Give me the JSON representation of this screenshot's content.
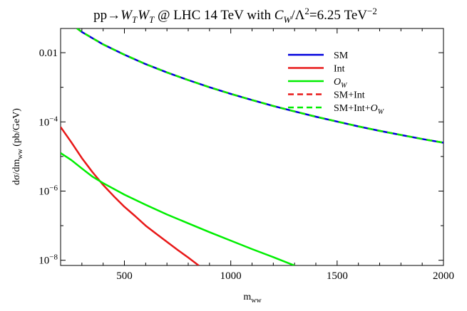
{
  "chart_data": {
    "type": "line",
    "title": {
      "prefix": "pp→",
      "w1": "W",
      "w1_sub": "T",
      "w2": "W",
      "w2_sub": "T",
      "mid": " @ LHC 14 TeV with ",
      "cw": "C",
      "cw_sub": "W",
      "ratio": "/Λ",
      "pow2": "2",
      "rest": "=6.25 TeV",
      "unit_exp": "−2"
    },
    "xlabel": {
      "main": "m",
      "sub": "ww"
    },
    "ylabel": {
      "pre": "dσ/dm",
      "sub": "ww",
      "post": " (pb/GeV)"
    },
    "x_range": [
      200,
      2000
    ],
    "y_range_log10": [
      -8.15,
      -1.3
    ],
    "y_scale": "log",
    "x_ticks": [
      500,
      1000,
      1500,
      2000
    ],
    "x_tick_labels": [
      "500",
      "1000",
      "1500",
      "2000"
    ],
    "y_ticks_log10": [
      -2,
      -4,
      -6,
      -8
    ],
    "y_tick_labels": [
      {
        "text": "0.01"
      },
      {
        "base": "10",
        "exp": "−4"
      },
      {
        "base": "10",
        "exp": "−6"
      },
      {
        "base": "10",
        "exp": "−8"
      }
    ],
    "legend_position": "top-right",
    "series": [
      {
        "name": "SM",
        "color": "#0000dd",
        "dash": "solid",
        "x": [
          200,
          300,
          400,
          500,
          600,
          700,
          800,
          900,
          1000,
          1100,
          1200,
          1300,
          1400,
          1500,
          1600,
          1700,
          1800,
          1900,
          2000
        ],
        "y": [
          0.1122,
          0.0398,
          0.01738,
          0.00871,
          0.00468,
          0.00269,
          0.00162,
          0.001,
          0.000646,
          0.000427,
          0.000288,
          0.0002,
          0.000141,
          0.000102,
          7.4e-05,
          5.5e-05,
          4.2e-05,
          3.2e-05,
          2.5e-05
        ]
      },
      {
        "name": "Int",
        "color": "#e81818",
        "dash": "solid",
        "x": [
          200,
          250,
          300,
          350,
          400,
          450,
          500,
          550,
          600,
          650,
          700,
          750,
          800,
          850
        ],
        "y": [
          7.1e-05,
          2.6e-05,
          9e-06,
          3.5e-06,
          1.5e-06,
          7.1e-07,
          3.5e-07,
          1.9e-07,
          1e-07,
          5.8e-08,
          3.4e-08,
          2e-08,
          1.2e-08,
          7e-09
        ]
      },
      {
        "legend_main": "O",
        "legend_sub": "W",
        "color": "#00ee00",
        "dash": "solid",
        "x": [
          200,
          250,
          300,
          350,
          400,
          500,
          600,
          700,
          800,
          900,
          1000,
          1100,
          1200,
          1300
        ],
        "y": [
          1.26e-05,
          7.9e-06,
          4.5e-06,
          2.6e-06,
          1.7e-06,
          7.9e-07,
          4e-07,
          2.1e-07,
          1.17e-07,
          6.5e-08,
          3.7e-08,
          2.1e-08,
          1.23e-08,
          7e-09
        ]
      },
      {
        "name": "SM+Int",
        "color": "#e81818",
        "dash": "dashed",
        "same_as": 0
      },
      {
        "legend_main": "SM+Int+O",
        "legend_sub": "W",
        "color": "#00ee00",
        "dash": "dashed",
        "same_as": 0
      }
    ]
  }
}
